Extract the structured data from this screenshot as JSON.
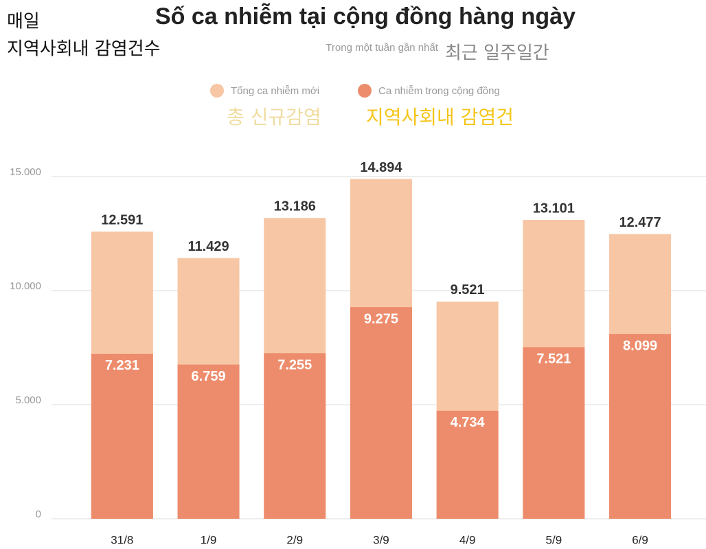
{
  "chart_data": {
    "type": "bar",
    "barmode": "overlay",
    "title": "Số ca nhiễm tại cộng đồng hàng ngày",
    "subtitle": "Trong một tuần gần nhất",
    "categories": [
      "31/8",
      "1/9",
      "2/9",
      "3/9",
      "4/9",
      "5/9",
      "6/9"
    ],
    "series": [
      {
        "name": "Tổng ca nhiễm mới",
        "color": "#f7c6a5",
        "values": [
          12591,
          11429,
          13186,
          14894,
          9521,
          13101,
          12477
        ],
        "value_labels": [
          "12.591",
          "11.429",
          "13.186",
          "14.894",
          "9.521",
          "13.101",
          "12.477"
        ]
      },
      {
        "name": "Ca nhiễm trong cộng đồng",
        "color": "#ed8c6c",
        "values": [
          7231,
          6759,
          7255,
          9275,
          4734,
          7521,
          8099
        ],
        "value_labels": [
          "7.231",
          "6.759",
          "7.255",
          "9.275",
          "4.734",
          "7.521",
          "8.099"
        ]
      }
    ],
    "ylim": [
      0,
      15000
    ],
    "yticks": [
      {
        "value": 0,
        "label": "0"
      },
      {
        "value": 5000,
        "label": "5.000"
      },
      {
        "value": 10000,
        "label": "10.000"
      },
      {
        "value": 15000,
        "label": "15.000"
      }
    ],
    "grid": true,
    "annotations": [
      "매일",
      "지역사회내 감염건수",
      "최근 일주일간",
      "총 신규감염",
      "지역사회내 감염건"
    ]
  }
}
